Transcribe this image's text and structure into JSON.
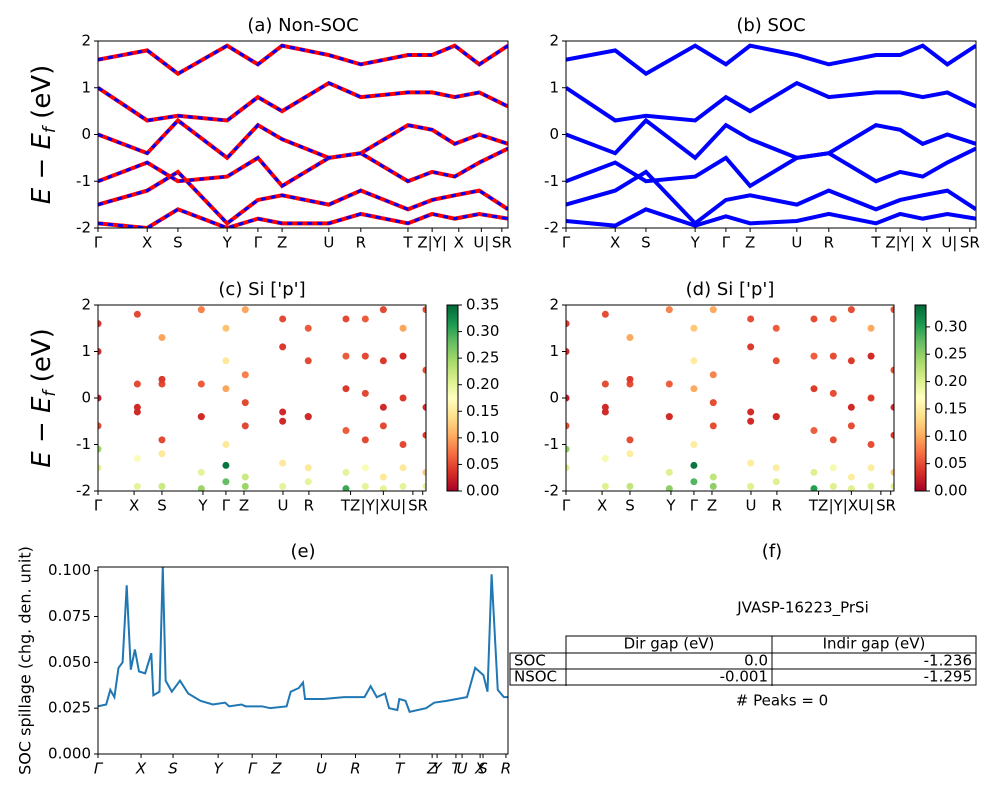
{
  "chart_data": [
    {
      "type": "band",
      "title": "(a) Non-SOC",
      "ylabel": [
        "E − E",
        "f",
        " (eV)"
      ],
      "color": "#ff0000",
      "dash_color": "#0000ff",
      "x": [
        0,
        0.12,
        0.195,
        0.315,
        0.39,
        0.449,
        0.563,
        0.641,
        0.756,
        0.815,
        0.87,
        0.93,
        1
      ],
      "xlim": [
        0,
        1
      ],
      "ylim": [
        -2,
        2
      ],
      "yticks": [
        -2,
        -1,
        0,
        1,
        2
      ],
      "xticks": [
        {
          "value": 0,
          "label": "Γ"
        },
        {
          "value": 0.12,
          "label": "X"
        },
        {
          "value": 0.195,
          "label": "S"
        },
        {
          "value": 0.315,
          "label": "Y"
        },
        {
          "value": 0.39,
          "label": "Γ"
        },
        {
          "value": 0.449,
          "label": "Z"
        },
        {
          "value": 0.563,
          "label": "U"
        },
        {
          "value": 0.641,
          "label": "R"
        },
        {
          "value": 0.756,
          "label": "T"
        },
        {
          "value": 0.815,
          "label": "Z|Y|"
        },
        {
          "value": 0.88,
          "label": "X"
        },
        {
          "value": 0.935,
          "label": "U|"
        },
        {
          "value": 0.985,
          "label": "SR"
        }
      ],
      "bands": [
        [
          -1.9,
          -2,
          -1.6,
          -2,
          -1.8,
          -1.9,
          -1.9,
          -1.7,
          -1.9,
          -1.7,
          -1.8,
          -1.7,
          -1.8
        ],
        [
          -1.5,
          -1.2,
          -0.8,
          -1.9,
          -1.4,
          -1.3,
          -1.5,
          -1.2,
          -1.6,
          -1.4,
          -1.3,
          -1.2,
          -1.6
        ],
        [
          -1,
          -0.6,
          -1,
          -0.9,
          -0.5,
          -1.1,
          -0.5,
          -0.4,
          -1,
          -0.8,
          -0.9,
          -0.6,
          -0.3
        ],
        [
          0,
          -0.4,
          0.3,
          -0.5,
          0.2,
          -0.1,
          -0.5,
          -0.4,
          0.2,
          0.1,
          -0.2,
          0,
          -0.2
        ],
        [
          1,
          0.3,
          0.4,
          0.3,
          0.8,
          0.5,
          1.1,
          0.8,
          0.9,
          0.9,
          0.8,
          0.9,
          0.6
        ],
        [
          1.6,
          1.8,
          1.3,
          1.9,
          1.5,
          1.9,
          1.7,
          1.5,
          1.7,
          1.7,
          1.9,
          1.5,
          1.9
        ]
      ]
    },
    {
      "type": "band",
      "title": "(b) SOC",
      "color": "#0000ff",
      "x": [
        0,
        0.12,
        0.195,
        0.315,
        0.39,
        0.449,
        0.563,
        0.641,
        0.756,
        0.815,
        0.87,
        0.93,
        1
      ],
      "xlim": [
        0,
        1
      ],
      "ylim": [
        -2,
        2
      ],
      "yticks": [
        -2,
        -1,
        0,
        1,
        2
      ],
      "xticks": [
        {
          "value": 0,
          "label": "Γ"
        },
        {
          "value": 0.12,
          "label": "X"
        },
        {
          "value": 0.195,
          "label": "S"
        },
        {
          "value": 0.315,
          "label": "Y"
        },
        {
          "value": 0.39,
          "label": "Γ"
        },
        {
          "value": 0.449,
          "label": "Z"
        },
        {
          "value": 0.563,
          "label": "U"
        },
        {
          "value": 0.641,
          "label": "R"
        },
        {
          "value": 0.756,
          "label": "T"
        },
        {
          "value": 0.815,
          "label": "Z|Y|"
        },
        {
          "value": 0.88,
          "label": "X"
        },
        {
          "value": 0.935,
          "label": "U|"
        },
        {
          "value": 0.985,
          "label": "SR"
        }
      ],
      "bands": [
        [
          -1.85,
          -1.95,
          -1.6,
          -1.95,
          -1.75,
          -1.9,
          -1.85,
          -1.7,
          -1.9,
          -1.7,
          -1.8,
          -1.7,
          -1.8
        ],
        [
          -1.5,
          -1.2,
          -0.8,
          -1.9,
          -1.4,
          -1.3,
          -1.5,
          -1.2,
          -1.6,
          -1.4,
          -1.3,
          -1.2,
          -1.6
        ],
        [
          -1,
          -0.6,
          -1,
          -0.9,
          -0.5,
          -1.1,
          -0.5,
          -0.4,
          -1,
          -0.8,
          -0.9,
          -0.6,
          -0.3
        ],
        [
          0,
          -0.4,
          0.3,
          -0.5,
          0.2,
          -0.1,
          -0.5,
          -0.4,
          0.2,
          0.1,
          -0.2,
          0,
          -0.2
        ],
        [
          1,
          0.3,
          0.4,
          0.3,
          0.8,
          0.5,
          1.1,
          0.8,
          0.9,
          0.9,
          0.8,
          0.9,
          0.6
        ],
        [
          1.6,
          1.8,
          1.3,
          1.9,
          1.5,
          1.9,
          1.7,
          1.5,
          1.7,
          1.7,
          1.9,
          1.5,
          1.9
        ]
      ]
    },
    {
      "type": "scatter",
      "title": "(c)  Si ['p']",
      "ylabel": [
        "E − E",
        "f",
        " (eV)"
      ],
      "colormap": "RdYlGn",
      "x": [
        0,
        0.12,
        0.195,
        0.315,
        0.39,
        0.449,
        0.563,
        0.641,
        0.756,
        0.815,
        0.87,
        0.93,
        1
      ],
      "xlim": [
        0,
        1
      ],
      "ylim": [
        -2,
        2
      ],
      "yticks": [
        -2,
        -1,
        0,
        1,
        2
      ],
      "xticks": [
        {
          "value": 0,
          "label": "Γ"
        },
        {
          "value": 0.11,
          "label": "X"
        },
        {
          "value": 0.195,
          "label": "S"
        },
        {
          "value": 0.32,
          "label": "Y"
        },
        {
          "value": 0.39,
          "label": "Γ"
        },
        {
          "value": 0.445,
          "label": "Z"
        },
        {
          "value": 0.564,
          "label": "U"
        },
        {
          "value": 0.643,
          "label": "R"
        },
        {
          "value": 0.77,
          "label": "TZ"
        },
        {
          "value": 0.87,
          "label": "|Y|XU|"
        },
        {
          "value": 0.96,
          "label": "S"
        },
        {
          "value": 0.99,
          "label": "R"
        }
      ],
      "clim": [
        0,
        0.35
      ],
      "cticks": [
        {
          "value": 0,
          "label": "0.00"
        },
        {
          "value": 0.05,
          "label": "0.05"
        },
        {
          "value": 0.1,
          "label": "0.10"
        },
        {
          "value": 0.15,
          "label": "0.15"
        },
        {
          "value": 0.2,
          "label": "0.20"
        },
        {
          "value": 0.25,
          "label": "0.25"
        },
        {
          "value": 0.3,
          "label": "0.30"
        },
        {
          "value": 0.35,
          "label": "0.35"
        }
      ],
      "bands": [
        [
          -1.5,
          -1.9,
          -1.9,
          -1.95,
          -1.45,
          -1.9,
          -1.9,
          -1.8,
          -1.95,
          -1.9,
          -1.95,
          -1.9,
          -1.9
        ],
        [
          -1.1,
          -1.3,
          -1.2,
          -1.6,
          -1.8,
          -1.7,
          -1.4,
          -1.5,
          -1.6,
          -1.5,
          -1.7,
          -1.5,
          -1.6
        ],
        [
          -0.6,
          -0.2,
          -0.9,
          -0.4,
          -1,
          -0.6,
          -0.3,
          -0.4,
          -0.7,
          -0.9,
          -0.6,
          -1,
          -0.8
        ],
        [
          0,
          -0.3,
          0.3,
          -0.4,
          0.2,
          -0.1,
          -0.5,
          -0.4,
          0.2,
          0.1,
          -0.2,
          0,
          -0.2
        ],
        [
          1,
          0.3,
          0.4,
          0.3,
          0.8,
          0.5,
          1.1,
          0.8,
          0.9,
          0.9,
          0.8,
          0.9,
          0.6
        ],
        [
          1.6,
          1.8,
          1.3,
          1.9,
          1.5,
          1.9,
          1.7,
          1.5,
          1.7,
          1.7,
          1.9,
          1.5,
          1.9
        ]
      ],
      "weights": [
        [
          0.2,
          0.2,
          0.22,
          0.25,
          0.34,
          0.25,
          0.2,
          0.2,
          0.3,
          0.2,
          0.2,
          0.2,
          0.2
        ],
        [
          0.25,
          0.18,
          0.15,
          0.2,
          0.28,
          0.22,
          0.15,
          0.15,
          0.2,
          0.18,
          0.15,
          0.15,
          0.12
        ],
        [
          0.05,
          0.03,
          0.05,
          0.1,
          0.15,
          0.05,
          0.03,
          0.04,
          0.06,
          0.05,
          0.05,
          0.05,
          0.04
        ],
        [
          0.02,
          0.03,
          0.05,
          0.03,
          0.1,
          0.05,
          0.03,
          0.03,
          0.04,
          0.05,
          0.03,
          0.04,
          0.03
        ],
        [
          0.03,
          0.05,
          0.04,
          0.06,
          0.15,
          0.08,
          0.04,
          0.05,
          0.06,
          0.05,
          0.04,
          0.03,
          0.05
        ],
        [
          0.04,
          0.05,
          0.1,
          0.08,
          0.12,
          0.1,
          0.05,
          0.06,
          0.05,
          0.06,
          0.05,
          0.1,
          0.05
        ]
      ]
    },
    {
      "type": "scatter",
      "title": "(d) Si ['p']",
      "colormap": "RdYlGn",
      "x": [
        0,
        0.12,
        0.195,
        0.315,
        0.39,
        0.449,
        0.563,
        0.641,
        0.756,
        0.815,
        0.87,
        0.93,
        1
      ],
      "xlim": [
        0,
        1
      ],
      "ylim": [
        -2,
        2
      ],
      "yticks": [
        -2,
        -1,
        0,
        1,
        2
      ],
      "xticks": [
        {
          "value": 0,
          "label": "Γ"
        },
        {
          "value": 0.11,
          "label": "X"
        },
        {
          "value": 0.195,
          "label": "S"
        },
        {
          "value": 0.32,
          "label": "Y"
        },
        {
          "value": 0.39,
          "label": "Γ"
        },
        {
          "value": 0.445,
          "label": "Z"
        },
        {
          "value": 0.564,
          "label": "U"
        },
        {
          "value": 0.643,
          "label": "R"
        },
        {
          "value": 0.77,
          "label": "TZ"
        },
        {
          "value": 0.87,
          "label": "|Y|XU|"
        },
        {
          "value": 0.96,
          "label": "S"
        },
        {
          "value": 0.99,
          "label": "R"
        }
      ],
      "clim": [
        0,
        0.34
      ],
      "cticks": [
        {
          "value": 0,
          "label": "0.00"
        },
        {
          "value": 0.05,
          "label": "0.05"
        },
        {
          "value": 0.1,
          "label": "0.10"
        },
        {
          "value": 0.15,
          "label": "0.15"
        },
        {
          "value": 0.2,
          "label": "0.20"
        },
        {
          "value": 0.25,
          "label": "0.25"
        },
        {
          "value": 0.3,
          "label": "0.30"
        }
      ],
      "bands": [
        [
          -1.5,
          -1.9,
          -1.9,
          -1.95,
          -1.45,
          -1.9,
          -1.9,
          -1.8,
          -1.95,
          -1.9,
          -1.95,
          -1.9,
          -1.9
        ],
        [
          -1.1,
          -1.3,
          -1.2,
          -1.6,
          -1.8,
          -1.7,
          -1.4,
          -1.5,
          -1.6,
          -1.5,
          -1.7,
          -1.5,
          -1.6
        ],
        [
          -0.6,
          -0.2,
          -0.9,
          -0.4,
          -1,
          -0.6,
          -0.3,
          -0.4,
          -0.7,
          -0.9,
          -0.6,
          -1,
          -0.8
        ],
        [
          0,
          -0.3,
          0.3,
          -0.4,
          0.2,
          -0.1,
          -0.5,
          -0.4,
          0.2,
          0.1,
          -0.2,
          0,
          -0.2
        ],
        [
          1,
          0.3,
          0.4,
          0.3,
          0.8,
          0.5,
          1.1,
          0.8,
          0.9,
          0.9,
          0.8,
          0.9,
          0.6
        ],
        [
          1.6,
          1.8,
          1.3,
          1.9,
          1.5,
          1.9,
          1.7,
          1.5,
          1.7,
          1.7,
          1.9,
          1.5,
          1.9
        ]
      ],
      "weights": [
        [
          0.2,
          0.2,
          0.22,
          0.25,
          0.33,
          0.25,
          0.2,
          0.2,
          0.3,
          0.2,
          0.2,
          0.2,
          0.2
        ],
        [
          0.25,
          0.18,
          0.15,
          0.2,
          0.28,
          0.22,
          0.15,
          0.15,
          0.2,
          0.18,
          0.15,
          0.15,
          0.12
        ],
        [
          0.05,
          0.03,
          0.05,
          0.1,
          0.15,
          0.05,
          0.03,
          0.04,
          0.06,
          0.05,
          0.05,
          0.05,
          0.04
        ],
        [
          0.02,
          0.03,
          0.05,
          0.03,
          0.1,
          0.05,
          0.03,
          0.03,
          0.04,
          0.05,
          0.03,
          0.04,
          0.03
        ],
        [
          0.03,
          0.05,
          0.04,
          0.06,
          0.15,
          0.08,
          0.04,
          0.05,
          0.06,
          0.05,
          0.04,
          0.03,
          0.05
        ],
        [
          0.04,
          0.05,
          0.1,
          0.08,
          0.12,
          0.1,
          0.05,
          0.06,
          0.05,
          0.06,
          0.05,
          0.1,
          0.05
        ]
      ]
    },
    {
      "type": "line",
      "title": "(e)",
      "ylabel": "SOC spillage (chg. den. unit)",
      "color": "#1f77b4",
      "x": [
        0,
        0.02,
        0.03,
        0.04,
        0.05,
        0.06,
        0.07,
        0.08,
        0.09,
        0.1,
        0.115,
        0.13,
        0.135,
        0.15,
        0.158,
        0.165,
        0.18,
        0.2,
        0.22,
        0.25,
        0.28,
        0.31,
        0.32,
        0.35,
        0.36,
        0.4,
        0.42,
        0.46,
        0.47,
        0.49,
        0.5,
        0.505,
        0.55,
        0.6,
        0.65,
        0.665,
        0.68,
        0.7,
        0.71,
        0.73,
        0.735,
        0.75,
        0.76,
        0.8,
        0.82,
        0.85,
        0.9,
        0.92,
        0.94,
        0.95,
        0.96,
        0.975,
        0.99,
        1
      ],
      "values": [
        0.026,
        0.027,
        0.035,
        0.031,
        0.047,
        0.05,
        0.092,
        0.046,
        0.057,
        0.045,
        0.044,
        0.055,
        0.032,
        0.034,
        0.102,
        0.04,
        0.034,
        0.04,
        0.033,
        0.029,
        0.027,
        0.028,
        0.026,
        0.027,
        0.026,
        0.026,
        0.025,
        0.026,
        0.034,
        0.036,
        0.039,
        0.03,
        0.03,
        0.031,
        0.031,
        0.037,
        0.031,
        0.033,
        0.025,
        0.024,
        0.03,
        0.029,
        0.023,
        0.025,
        0.028,
        0.029,
        0.031,
        0.047,
        0.043,
        0.034,
        0.098,
        0.035,
        0.031,
        0.031
      ],
      "xlim": [
        0,
        1
      ],
      "ylim": [
        0,
        0.102
      ],
      "yticks": [
        {
          "value": 0,
          "label": "0.000"
        },
        0.025,
        {
          "value": 0.05,
          "label": "0.050"
        },
        0.075,
        {
          "value": 0.1,
          "label": "0.100"
        }
      ],
      "xticks": [
        {
          "value": 0,
          "label": "Γ"
        },
        {
          "value": 0.105,
          "label": "X"
        },
        {
          "value": 0.183,
          "label": "S"
        },
        {
          "value": 0.293,
          "label": "Y"
        },
        {
          "value": 0.376,
          "label": "Γ"
        },
        {
          "value": 0.435,
          "label": "Z"
        },
        {
          "value": 0.545,
          "label": "U"
        },
        {
          "value": 0.628,
          "label": "R"
        },
        {
          "value": 0.736,
          "label": "T"
        },
        {
          "value": 0.815,
          "label": "Z"
        },
        {
          "value": 0.827,
          "label": "Y"
        },
        {
          "value": 0.873,
          "label": "T"
        },
        {
          "value": 0.888,
          "label": "U"
        },
        {
          "value": 0.932,
          "label": "X"
        },
        {
          "value": 0.939,
          "label": "S"
        },
        {
          "value": 0.995,
          "label": "R"
        }
      ]
    },
    {
      "type": "table",
      "title": "(f)",
      "name": "JVASP-16223_PrSi",
      "columns": [
        "Dir gap (eV)",
        "Indir gap (eV)"
      ],
      "rows": [
        {
          "label": "SOC",
          "values": [
            "0.0",
            "-1.236"
          ]
        },
        {
          "label": "NSOC",
          "values": [
            "-0.001",
            "-1.295"
          ]
        }
      ],
      "note": "# Peaks = 0"
    }
  ]
}
